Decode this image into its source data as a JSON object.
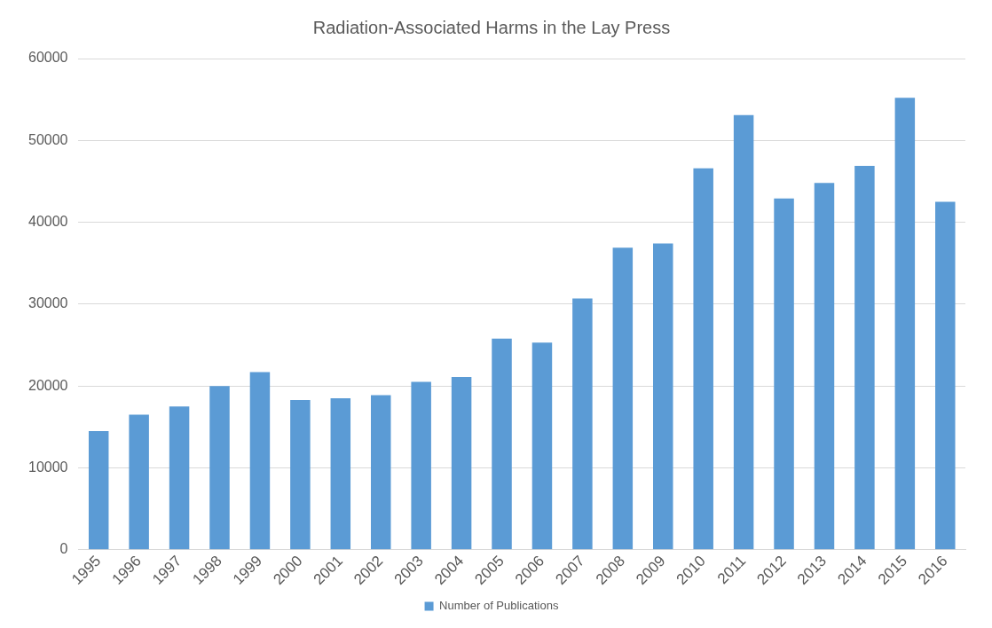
{
  "chart_data": {
    "type": "bar",
    "title": "Radiation-Associated Harms in the Lay Press",
    "categories": [
      "1995",
      "1996",
      "1997",
      "1998",
      "1999",
      "2000",
      "2001",
      "2002",
      "2003",
      "2004",
      "2005",
      "2006",
      "2007",
      "2008",
      "2009",
      "2010",
      "2011",
      "2012",
      "2013",
      "2014",
      "2015",
      "2016"
    ],
    "series": [
      {
        "name": "Number of Publications",
        "color": "#5b9bd5",
        "values": [
          14500,
          16500,
          17500,
          20000,
          21700,
          18300,
          18500,
          18900,
          20500,
          21100,
          25800,
          25300,
          30700,
          36900,
          37400,
          46600,
          53100,
          42900,
          44800,
          46900,
          55200,
          42500
        ]
      }
    ],
    "ylim": [
      0,
      60000
    ],
    "yticks": [
      0,
      10000,
      20000,
      30000,
      40000,
      50000,
      60000
    ],
    "grid": "y",
    "legend": "bottom"
  }
}
